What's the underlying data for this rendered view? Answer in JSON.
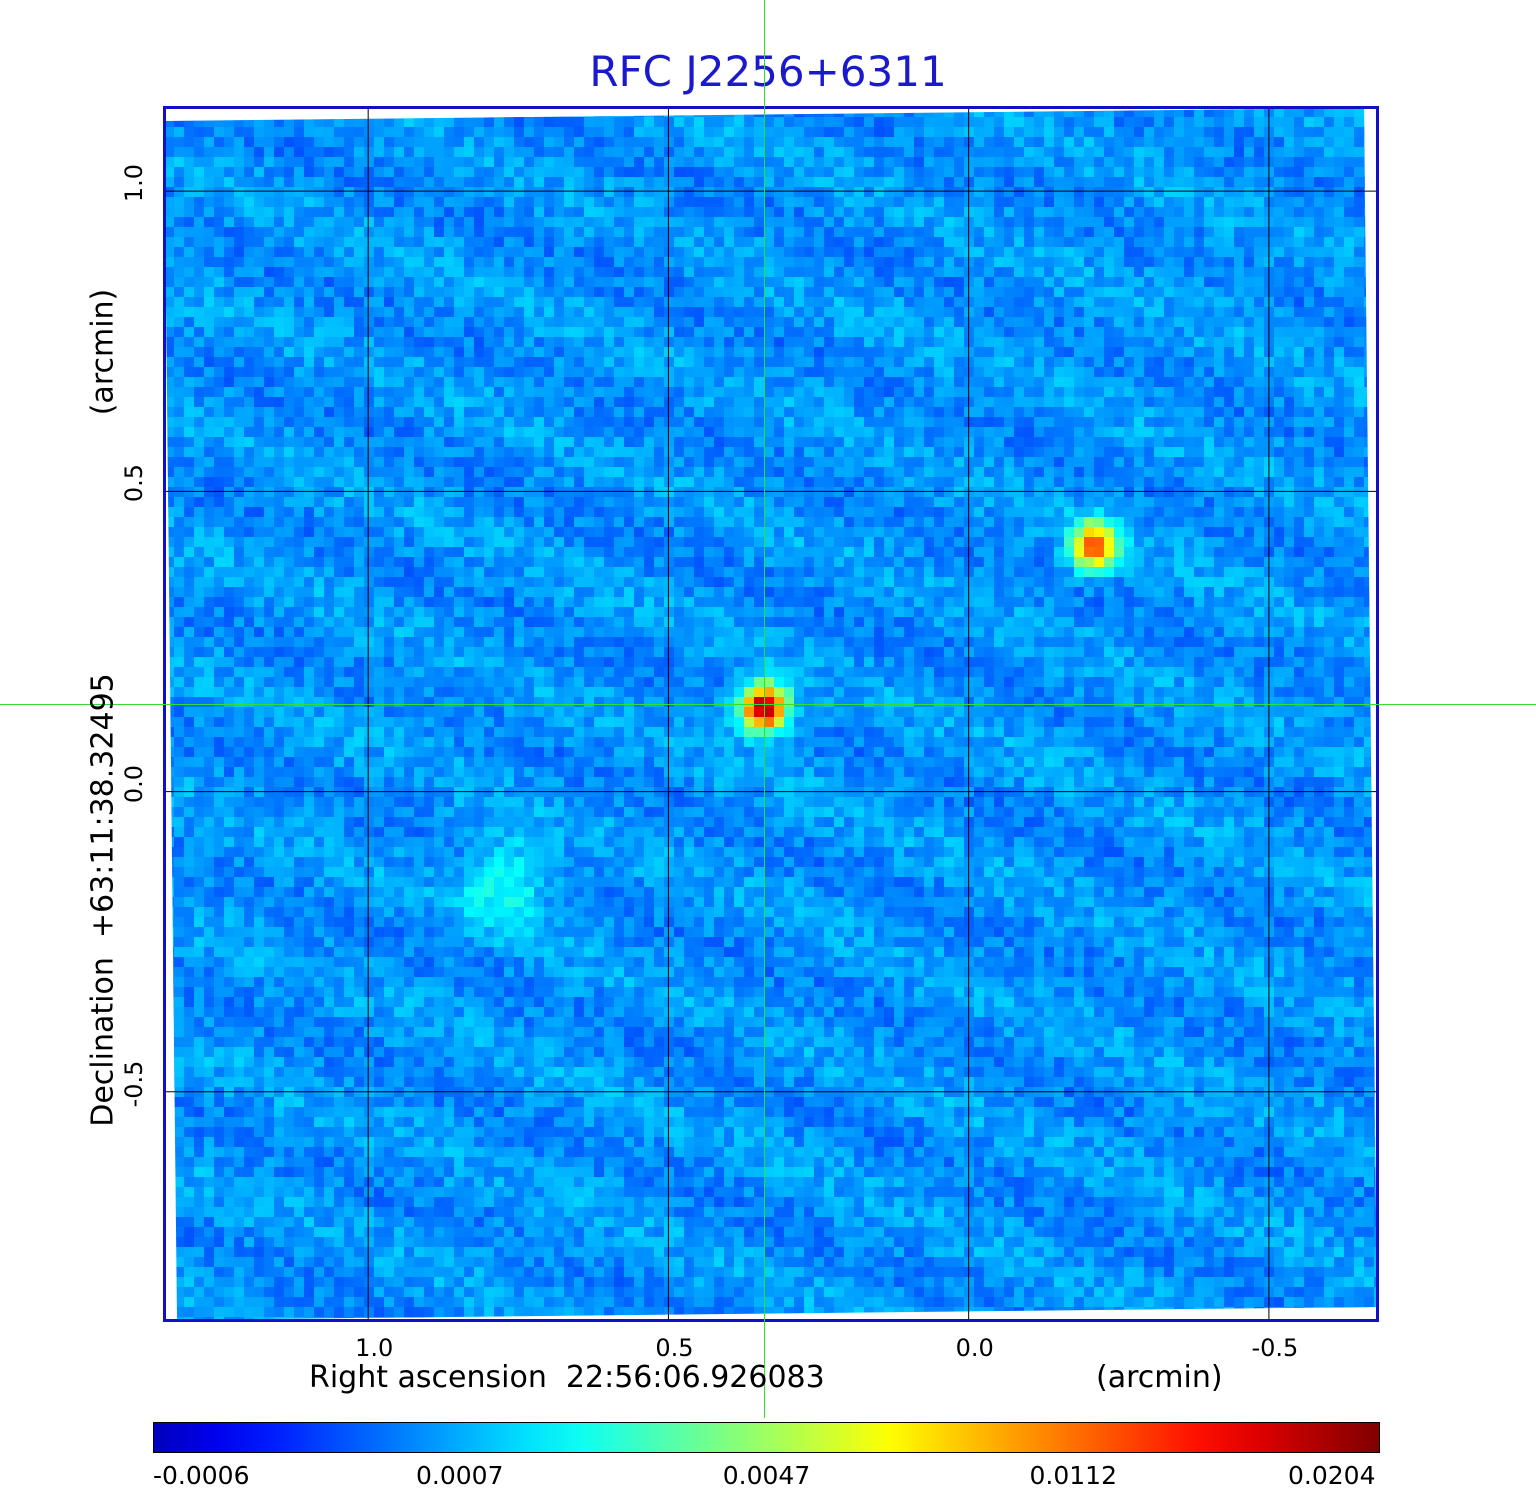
{
  "chart_data": {
    "type": "heatmap",
    "title": "RFC J2256+6311",
    "xlabel": "Right ascension  22:56:06.926083",
    "x_unit": "(arcmin)",
    "ylabel": "Declination  +63:11:38.32495",
    "y_unit": "(arcmin)",
    "x_ticks": [
      "1.0",
      "0.5",
      "0.0",
      "-0.5"
    ],
    "y_ticks": [
      "1.0",
      "0.5",
      "0.0",
      "-0.5"
    ],
    "x_tick_values": [
      1.0,
      0.5,
      0.0,
      -0.5
    ],
    "y_tick_values": [
      1.0,
      0.5,
      0.0,
      -0.5
    ],
    "xlim": [
      1.34,
      -0.68
    ],
    "ylim": [
      -0.88,
      1.14
    ],
    "grid": true,
    "crosshair": {
      "x": 0.34,
      "y": 0.145,
      "color": "#33dd33"
    },
    "colorbar": {
      "colormap": "jet",
      "tick_labels": [
        "-0.0006",
        "0.0007",
        "0.0047",
        "0.0112",
        "0.0204"
      ]
    },
    "sources": [
      {
        "x": 0.34,
        "y": 0.14,
        "peak": 0.0204
      },
      {
        "x": -0.21,
        "y": 0.41,
        "peak": 0.0155
      },
      {
        "x": 0.77,
        "y": -0.15,
        "peak": 0.003
      }
    ],
    "colors": {
      "title": "#1a1acc",
      "frame": "#1010c8",
      "background_noise": "#2a5ae6"
    }
  }
}
